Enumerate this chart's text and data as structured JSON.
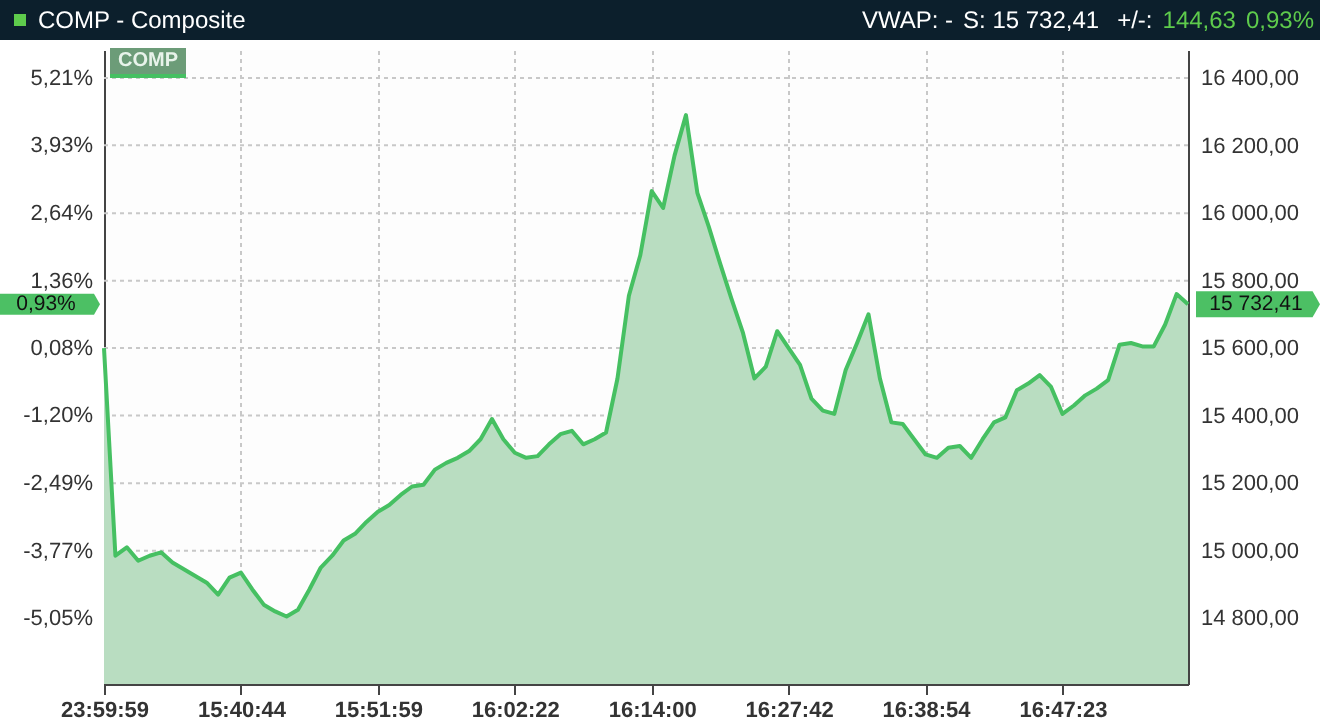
{
  "chart_data": {
    "type": "area",
    "title": "COMP - Composite",
    "annotations": [
      "VWAP: -",
      "S: 15 732,41",
      "+/-:",
      "144,63",
      "0,93%",
      "COMP",
      "0,93%",
      "15 732,41"
    ],
    "categories": [
      "23:59:59",
      null,
      null,
      null,
      null,
      null,
      null,
      null,
      null,
      null,
      null,
      null,
      "15:40:44",
      null,
      null,
      null,
      null,
      null,
      null,
      null,
      null,
      null,
      null,
      null,
      "15:51:59",
      null,
      null,
      null,
      null,
      null,
      null,
      null,
      null,
      null,
      null,
      null,
      "16:02:22",
      null,
      null,
      null,
      null,
      null,
      null,
      null,
      null,
      null,
      null,
      null,
      "16:14:00",
      null,
      null,
      null,
      null,
      null,
      null,
      null,
      null,
      null,
      null,
      null,
      "16:27:42",
      null,
      null,
      null,
      null,
      null,
      null,
      null,
      null,
      null,
      null,
      null,
      "16:38:54",
      null,
      null,
      null,
      null,
      null,
      null,
      null,
      null,
      null,
      null,
      null,
      "16:47:23",
      null,
      null,
      null,
      null,
      null,
      null,
      null,
      null,
      null,
      null,
      null
    ],
    "series": [
      {
        "color": "#46c062",
        "axis": "y2",
        "values": [
          15600,
          14985,
          15010,
          14970,
          14985,
          14995,
          14965,
          14945,
          14925,
          14905,
          14870,
          14920,
          14935,
          14885,
          14840,
          14820,
          14805,
          14825,
          14885,
          14950,
          14985,
          15030,
          15050,
          15085,
          15115,
          15135,
          15165,
          15190,
          15195,
          15240,
          15260,
          15275,
          15295,
          15330,
          15390,
          15330,
          15290,
          15275,
          15280,
          15315,
          15345,
          15355,
          15315,
          15330,
          15350,
          15510,
          15755,
          15875,
          16065,
          16015,
          16170,
          16290,
          16060,
          15960,
          15850,
          15745,
          15645,
          15510,
          15545,
          15650,
          15600,
          15550,
          15450,
          15415,
          15405,
          15535,
          15615,
          15700,
          15510,
          15380,
          15375,
          15330,
          15285,
          15275,
          15305,
          15310,
          15275,
          15330,
          15380,
          15395,
          15475,
          15495,
          15520,
          15485,
          15405,
          15430,
          15460,
          15480,
          15505,
          15610,
          15615,
          15605,
          15605,
          15670,
          15760,
          15730
        ]
      }
    ],
    "ylim": [
      -6.3,
      5.74
    ],
    "yticks": [
      {
        "value": -5.05,
        "label": "-5,05%"
      },
      {
        "value": -3.77,
        "label": "-3,77%"
      },
      {
        "value": -2.49,
        "label": "-2,49%"
      },
      {
        "value": -1.2,
        "label": "-1,20%"
      },
      {
        "value": 0.08,
        "label": "0,08%"
      },
      {
        "value": 1.36,
        "label": "1,36%"
      },
      {
        "value": 2.64,
        "label": "2,64%"
      },
      {
        "value": 3.93,
        "label": "3,93%"
      },
      {
        "value": 5.21,
        "label": "5,21%"
      }
    ],
    "y2lim": [
      14605,
      16483
    ],
    "y2ticks": [
      {
        "value": 14800,
        "label": "14 800,00"
      },
      {
        "value": 15000,
        "label": "15 000,00"
      },
      {
        "value": 15200,
        "label": "15 200,00"
      },
      {
        "value": 15400,
        "label": "15 400,00"
      },
      {
        "value": 15600,
        "label": "15 600,00"
      },
      {
        "value": 15800,
        "label": "15 800,00"
      },
      {
        "value": 16000,
        "label": "16 000,00"
      },
      {
        "value": 16200,
        "label": "16 200,00"
      },
      {
        "value": 16400,
        "label": "16 400,00"
      }
    ],
    "grid": true,
    "line_style": "solid"
  }
}
